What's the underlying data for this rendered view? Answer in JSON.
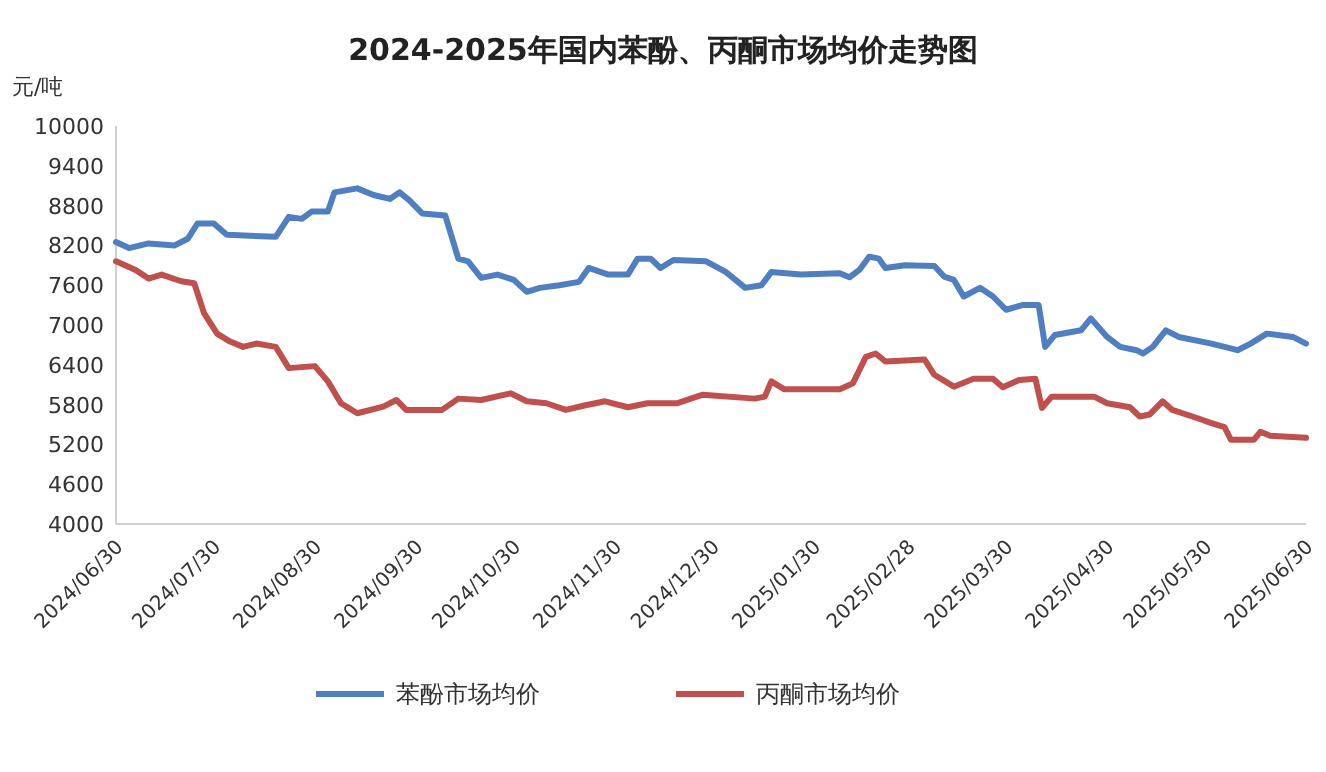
{
  "chart_data": {
    "type": "line",
    "title": "2024-2025年国内苯酚、丙酮市场均价走势图",
    "ylabel": "元/吨",
    "xlim": [
      "2024-06-30",
      "2025-06-30"
    ],
    "xticks": [
      {
        "value": "2024-06-30",
        "label": "2024/06/30"
      },
      {
        "value": "2024-07-30",
        "label": "2024/07/30"
      },
      {
        "value": "2024-08-30",
        "label": "2024/08/30"
      },
      {
        "value": "2024-09-30",
        "label": "2024/09/30"
      },
      {
        "value": "2024-10-30",
        "label": "2024/10/30"
      },
      {
        "value": "2024-11-30",
        "label": "2024/11/30"
      },
      {
        "value": "2024-12-30",
        "label": "2024/12/30"
      },
      {
        "value": "2025-01-30",
        "label": "2025/01/30"
      },
      {
        "value": "2025-02-28",
        "label": "2025/02/28"
      },
      {
        "value": "2025-03-30",
        "label": "2025/03/30"
      },
      {
        "value": "2025-04-30",
        "label": "2025/04/30"
      },
      {
        "value": "2025-05-30",
        "label": "2025/05/30"
      },
      {
        "value": "2025-06-30",
        "label": "2025/06/30"
      }
    ],
    "ylim": [
      4000,
      10000
    ],
    "yticks": [
      4000,
      4600,
      5200,
      5800,
      6400,
      7000,
      7600,
      8200,
      8800,
      9400,
      10000
    ],
    "grid": false,
    "legend": "bottom",
    "marker": "none",
    "line_style": "solid",
    "series": [
      {
        "name": "苯酚市场均价",
        "color": "#4f7fc0",
        "x": [
          "2024-06-30",
          "2024-07-04",
          "2024-07-10",
          "2024-07-18",
          "2024-07-22",
          "2024-07-25",
          "2024-07-30",
          "2024-08-03",
          "2024-08-18",
          "2024-08-22",
          "2024-08-26",
          "2024-08-29",
          "2024-09-03",
          "2024-09-05",
          "2024-09-12",
          "2024-09-17",
          "2024-09-22",
          "2024-09-25",
          "2024-09-28",
          "2024-10-02",
          "2024-10-09",
          "2024-10-13",
          "2024-10-16",
          "2024-10-20",
          "2024-10-25",
          "2024-10-30",
          "2024-11-03",
          "2024-11-07",
          "2024-11-13",
          "2024-11-19",
          "2024-11-22",
          "2024-11-28",
          "2024-12-04",
          "2024-12-07",
          "2024-12-11",
          "2024-12-14",
          "2024-12-18",
          "2024-12-28",
          "2025-01-03",
          "2025-01-09",
          "2025-01-14",
          "2025-01-17",
          "2025-01-26",
          "2025-02-07",
          "2025-02-10",
          "2025-02-13",
          "2025-02-16",
          "2025-02-19",
          "2025-02-21",
          "2025-02-27",
          "2025-03-08",
          "2025-03-11",
          "2025-03-14",
          "2025-03-17",
          "2025-03-22",
          "2025-03-26",
          "2025-03-30",
          "2025-04-04",
          "2025-04-09",
          "2025-04-11",
          "2025-04-14",
          "2025-04-22",
          "2025-04-25",
          "2025-04-30",
          "2025-05-04",
          "2025-05-09",
          "2025-05-11",
          "2025-05-14",
          "2025-05-18",
          "2025-05-22",
          "2025-06-01",
          "2025-06-09",
          "2025-06-13",
          "2025-06-18",
          "2025-06-26",
          "2025-06-30"
        ],
        "values": [
          8250,
          8160,
          8230,
          8200,
          8300,
          8530,
          8530,
          8360,
          8330,
          8630,
          8600,
          8710,
          8710,
          9000,
          9060,
          8960,
          8900,
          9000,
          8880,
          8680,
          8650,
          8000,
          7960,
          7710,
          7760,
          7680,
          7500,
          7560,
          7600,
          7650,
          7860,
          7760,
          7760,
          8000,
          8000,
          7860,
          7980,
          7960,
          7800,
          7560,
          7600,
          7800,
          7760,
          7780,
          7720,
          7830,
          8030,
          8000,
          7860,
          7900,
          7890,
          7730,
          7680,
          7430,
          7560,
          7430,
          7230,
          7300,
          7300,
          6670,
          6850,
          6920,
          7100,
          6820,
          6670,
          6620,
          6570,
          6670,
          6920,
          6820,
          6720,
          6620,
          6720,
          6870,
          6820,
          6720
        ]
      },
      {
        "name": "丙酮市场均价",
        "color": "#c0504d",
        "x": [
          "2024-06-30",
          "2024-07-06",
          "2024-07-10",
          "2024-07-14",
          "2024-07-20",
          "2024-07-24",
          "2024-07-27",
          "2024-07-31",
          "2024-08-04",
          "2024-08-08",
          "2024-08-12",
          "2024-08-18",
          "2024-08-22",
          "2024-08-30",
          "2024-09-03",
          "2024-09-07",
          "2024-09-12",
          "2024-09-20",
          "2024-09-24",
          "2024-09-27",
          "2024-10-08",
          "2024-10-13",
          "2024-10-20",
          "2024-10-29",
          "2024-11-03",
          "2024-11-09",
          "2024-11-15",
          "2024-11-21",
          "2024-11-27",
          "2024-12-04",
          "2024-12-10",
          "2024-12-19",
          "2024-12-27",
          "2025-01-12",
          "2025-01-15",
          "2025-01-17",
          "2025-01-21",
          "2025-02-07",
          "2025-02-11",
          "2025-02-15",
          "2025-02-18",
          "2025-02-21",
          "2025-03-05",
          "2025-03-08",
          "2025-03-14",
          "2025-03-20",
          "2025-03-26",
          "2025-03-29",
          "2025-04-03",
          "2025-04-08",
          "2025-04-10",
          "2025-04-13",
          "2025-04-26",
          "2025-04-30",
          "2025-05-07",
          "2025-05-10",
          "2025-05-13",
          "2025-05-17",
          "2025-05-20",
          "2025-05-28",
          "2025-06-01",
          "2025-06-05",
          "2025-06-07",
          "2025-06-14",
          "2025-06-16",
          "2025-06-19",
          "2025-06-30"
        ],
        "values": [
          7960,
          7830,
          7700,
          7760,
          7660,
          7630,
          7180,
          6870,
          6750,
          6670,
          6720,
          6670,
          6350,
          6380,
          6150,
          5820,
          5670,
          5770,
          5870,
          5720,
          5720,
          5890,
          5870,
          5970,
          5850,
          5820,
          5720,
          5790,
          5850,
          5760,
          5820,
          5820,
          5950,
          5890,
          5920,
          6150,
          6030,
          6030,
          6120,
          6520,
          6570,
          6450,
          6480,
          6250,
          6070,
          6190,
          6190,
          6060,
          6170,
          6190,
          5750,
          5920,
          5920,
          5820,
          5760,
          5620,
          5650,
          5850,
          5720,
          5590,
          5520,
          5460,
          5270,
          5270,
          5390,
          5330,
          5300
        ]
      }
    ]
  }
}
